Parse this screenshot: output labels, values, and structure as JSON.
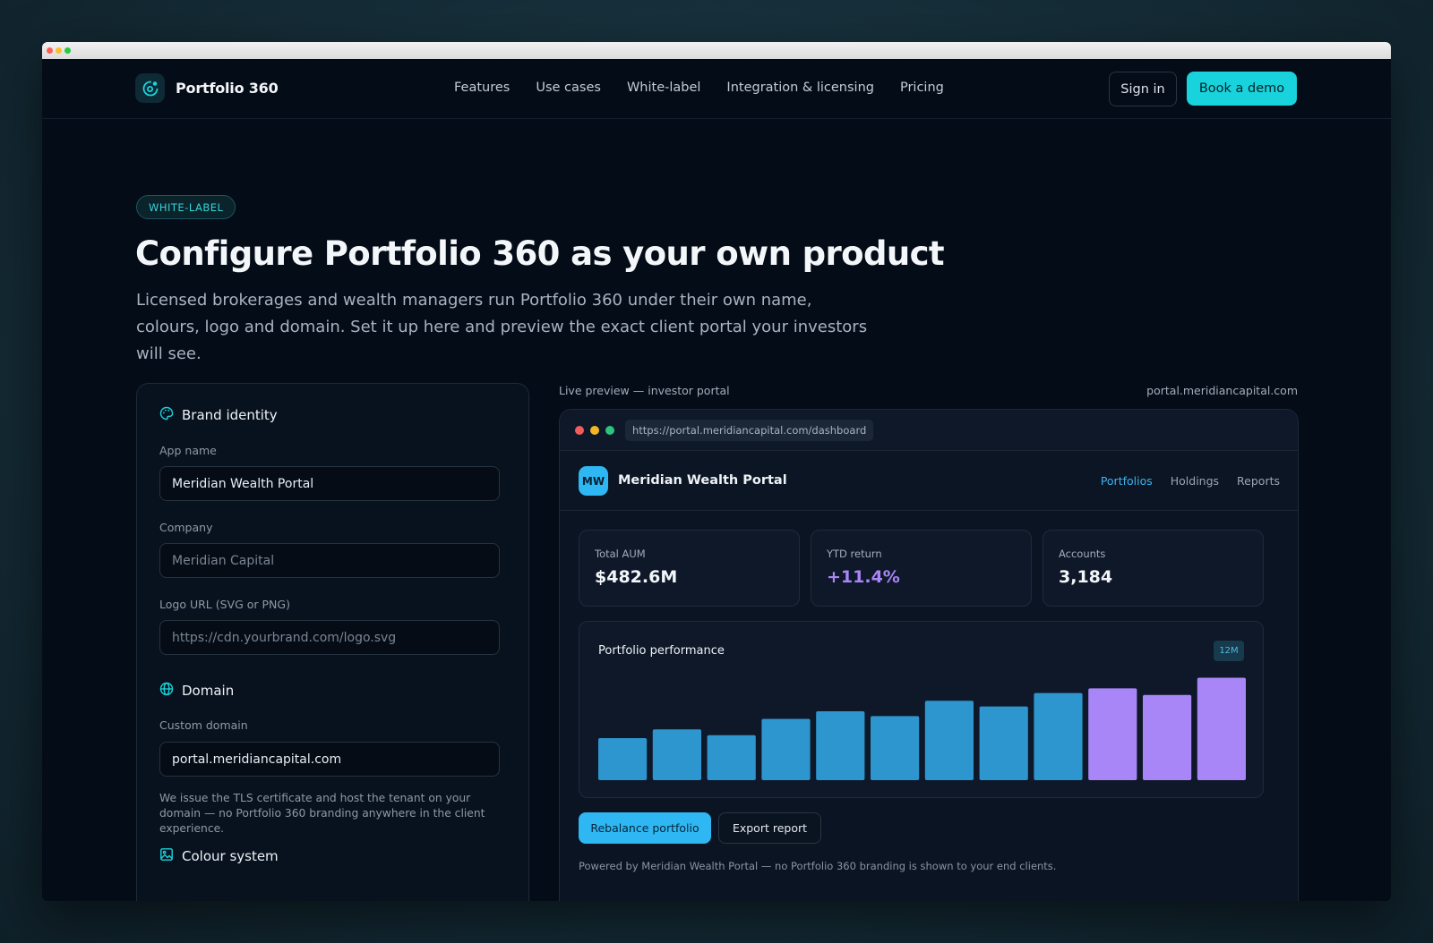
{
  "nav": {
    "brand": "Portfolio 360",
    "links": [
      "Features",
      "Use cases",
      "White-label",
      "Integration & licensing",
      "Pricing"
    ],
    "sign_in": "Sign in",
    "book_demo": "Book a demo"
  },
  "hero": {
    "pill": "WHITE-LABEL",
    "title": "Configure Portfolio 360 as your own product",
    "subtitle": "Licensed brokerages and wealth managers run Portfolio 360 under their own name, colours, logo and domain. Set it up here and preview the exact client portal your investors will see."
  },
  "config": {
    "brand_section": "Brand identity",
    "app_name_label": "App name",
    "app_name_value": "Meridian Wealth Portal",
    "company_label": "Company",
    "company_placeholder": "Meridian Capital",
    "logo_label": "Logo URL (SVG or PNG)",
    "logo_placeholder": "https://cdn.yourbrand.com/logo.svg",
    "domain_section": "Domain",
    "custom_domain_label": "Custom domain",
    "custom_domain_value": "portal.meridiancapital.com",
    "domain_hint": "We issue the TLS certificate and host the tenant on your domain — no Portfolio 360 branding anywhere in the client experience.",
    "colour_section": "Colour system"
  },
  "preview": {
    "label": "Live preview — investor portal",
    "domain": "portal.meridiancapital.com",
    "url": "https://portal.meridiancapital.com/dashboard",
    "logo_initials": "MW",
    "app_name": "Meridian Wealth Portal",
    "tabs": [
      "Portfolios",
      "Holdings",
      "Reports"
    ],
    "active_tab": "Portfolios",
    "stats": [
      {
        "label": "Total AUM",
        "value": "$482.6M"
      },
      {
        "label": "YTD return",
        "value": "+11.4%"
      },
      {
        "label": "Accounts",
        "value": "3,184"
      }
    ],
    "chart_title": "Portfolio performance",
    "chart_range": "12M",
    "primary_action": "Rebalance portfolio",
    "secondary_action": "Export report",
    "powered_by": "Powered by Meridian Wealth Portal — no Portfolio 360 branding is shown to your end clients."
  },
  "chart_data": {
    "type": "bar",
    "values": [
      44,
      53,
      47,
      64,
      72,
      67,
      83,
      77,
      91,
      96,
      89,
      107
    ],
    "highlight_from_index": 9,
    "ylim": [
      0,
      115
    ],
    "colors": {
      "base": "#2e96cf",
      "highlight": "#a886f7"
    },
    "grid": false,
    "legend": "none"
  },
  "colors": {
    "accent": "#19d3dc",
    "portal_primary": "#2fb7f3",
    "positive": "#a886f7",
    "background": "#040c17"
  }
}
